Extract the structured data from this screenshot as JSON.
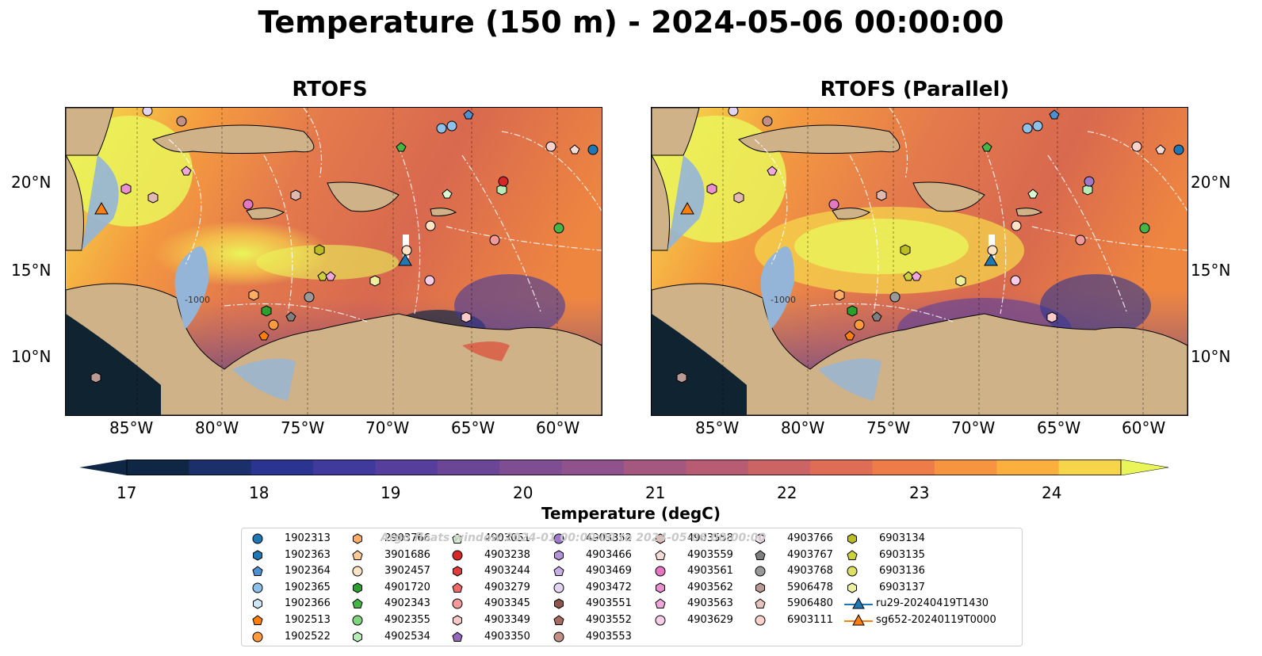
{
  "title": "Temperature (150 m) - 2024-05-06 00:00:00",
  "panels": [
    {
      "title": "RTOFS"
    },
    {
      "title": "RTOFS (Parallel)"
    }
  ],
  "lon_labels": [
    "85°W",
    "80°W",
    "75°W",
    "70°W",
    "65°W",
    "60°W"
  ],
  "lat_labels": [
    "20°N",
    "15°N",
    "10°N"
  ],
  "contour_label": "-1000",
  "colorbar": {
    "label": "Temperature (degC)",
    "ticks": [
      "17",
      "18",
      "19",
      "20",
      "21",
      "22",
      "23",
      "24"
    ],
    "colors": [
      "#0f2744",
      "#1b2f6b",
      "#2b3591",
      "#3f3a9c",
      "#563f9c",
      "#6b4697",
      "#7e4d92",
      "#90528c",
      "#a4577f",
      "#b85c74",
      "#cc6365",
      "#df6c55",
      "#ee7c49",
      "#f79440",
      "#fbaf3c",
      "#f6d54b",
      "#eaf55a"
    ]
  },
  "watermark": "Argo floats window 2024-01 00:00:00 to 2024-05-06 00:00:00",
  "legend": {
    "columns": [
      [
        {
          "label": "1902313",
          "marker": "circle",
          "color": "#1f77b4"
        },
        {
          "label": "1902363",
          "marker": "hexagon",
          "color": "#1f77b4"
        },
        {
          "label": "1902364",
          "marker": "pentagon",
          "color": "#4e8fd0"
        },
        {
          "label": "1902365",
          "marker": "circle",
          "color": "#8ec1ea"
        },
        {
          "label": "1902366",
          "marker": "hexagon",
          "color": "#cfe6f7"
        },
        {
          "label": "1902513",
          "marker": "pentagon",
          "color": "#ff7f0e"
        },
        {
          "label": "1902522",
          "marker": "circle",
          "color": "#ff9b3d"
        }
      ],
      [
        {
          "label": "2903766",
          "marker": "hexagon",
          "color": "#ffad66"
        },
        {
          "label": "3901686",
          "marker": "pentagon",
          "color": "#ffc999"
        },
        {
          "label": "3902457",
          "marker": "circle",
          "color": "#ffe3c4"
        },
        {
          "label": "4901720",
          "marker": "hexagon",
          "color": "#2ca02c"
        },
        {
          "label": "4902343",
          "marker": "pentagon",
          "color": "#45b545"
        },
        {
          "label": "4902355",
          "marker": "circle",
          "color": "#7fd67f"
        },
        {
          "label": "4902534",
          "marker": "hexagon",
          "color": "#b7ecb7"
        }
      ],
      [
        {
          "label": "4903051",
          "marker": "pentagon",
          "color": "#d9f7d0"
        },
        {
          "label": "4903238",
          "marker": "circle",
          "color": "#d62728"
        },
        {
          "label": "4903244",
          "marker": "hexagon",
          "color": "#e03c3c"
        },
        {
          "label": "4903279",
          "marker": "pentagon",
          "color": "#ef6b6b"
        },
        {
          "label": "4903345",
          "marker": "circle",
          "color": "#f59a9a"
        },
        {
          "label": "4903349",
          "marker": "hexagon",
          "color": "#fcc9c9"
        },
        {
          "label": "4903350",
          "marker": "pentagon",
          "color": "#9467bd"
        }
      ],
      [
        {
          "label": "4903352",
          "marker": "circle",
          "color": "#9f78c9"
        },
        {
          "label": "4903466",
          "marker": "hexagon",
          "color": "#b395d8"
        },
        {
          "label": "4903469",
          "marker": "pentagon",
          "color": "#c6afe4"
        },
        {
          "label": "4903472",
          "marker": "circle",
          "color": "#e2d5f1"
        },
        {
          "label": "4903551",
          "marker": "hexagon",
          "color": "#8c564b"
        },
        {
          "label": "4903552",
          "marker": "pentagon",
          "color": "#a46b5f"
        },
        {
          "label": "4903553",
          "marker": "circle",
          "color": "#c09086"
        }
      ],
      [
        {
          "label": "4903558",
          "marker": "hexagon",
          "color": "#e2b9b1"
        },
        {
          "label": "4903559",
          "marker": "pentagon",
          "color": "#f5dcd6"
        },
        {
          "label": "4903561",
          "marker": "circle",
          "color": "#e377c2"
        },
        {
          "label": "4903562",
          "marker": "hexagon",
          "color": "#ea8fcf"
        },
        {
          "label": "4903563",
          "marker": "pentagon",
          "color": "#f0a8dc"
        },
        {
          "label": "4903629",
          "marker": "circle",
          "color": "#f8cdea"
        }
      ],
      [
        {
          "label": "4903766",
          "marker": "hexagon",
          "color": "#fbe3f2"
        },
        {
          "label": "4903767",
          "marker": "pentagon",
          "color": "#7f7f7f"
        },
        {
          "label": "4903768",
          "marker": "circle",
          "color": "#999999"
        },
        {
          "label": "5906478",
          "marker": "hexagon",
          "color": "#b99a94"
        },
        {
          "label": "5906480",
          "marker": "pentagon",
          "color": "#e4c4bc"
        },
        {
          "label": "6903111",
          "marker": "circle",
          "color": "#fbd3cc"
        }
      ],
      [
        {
          "label": "6903134",
          "marker": "hexagon",
          "color": "#bcbd22"
        },
        {
          "label": "6903135",
          "marker": "pentagon",
          "color": "#cfd13b"
        },
        {
          "label": "6903136",
          "marker": "circle",
          "color": "#dde060"
        },
        {
          "label": "6903137",
          "marker": "hexagon",
          "color": "#eef0a0"
        },
        {
          "label": "ru29-20240419T1430",
          "marker": "triangle-line",
          "color": "#1f77b4"
        },
        {
          "label": "sg652-20240119T0000",
          "marker": "triangle-line",
          "color": "#ff7f0e"
        }
      ]
    ]
  }
}
